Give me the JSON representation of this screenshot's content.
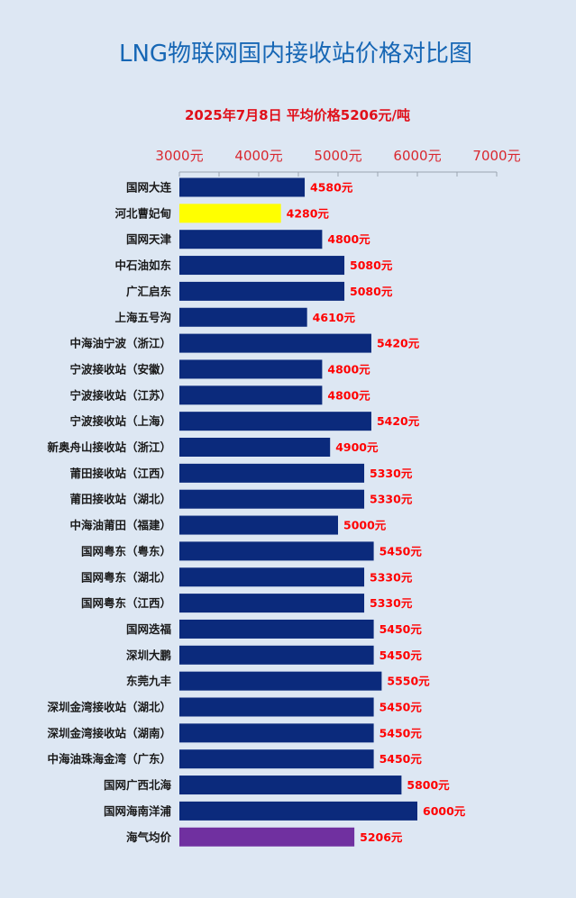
{
  "chart_data": {
    "type": "bar",
    "orientation": "horizontal",
    "title": "LNG物联网国内接收站价格对比图",
    "subtitle": "2025年7月8日 平均价格5206元/吨",
    "x_ticks": [
      "3000元",
      "4000元",
      "5000元",
      "6000元",
      "7000元"
    ],
    "xlim": [
      3000,
      7000
    ],
    "value_suffix": "元",
    "axis_position": "top",
    "categories": [
      "国网大连",
      "河北曹妃甸",
      "国网天津",
      "中石油如东",
      "广汇启东",
      "上海五号沟",
      "中海油宁波（浙江）",
      "宁波接收站（安徽）",
      "宁波接收站（江苏）",
      "宁波接收站（上海）",
      "新奥舟山接收站（浙江）",
      "莆田接收站（江西）",
      "莆田接收站（湖北）",
      "中海油莆田（福建）",
      "国网粤东（粤东）",
      "国网粤东（湖北）",
      "国网粤东（江西）",
      "国网迭福",
      "深圳大鹏",
      "东莞九丰",
      "深圳金湾接收站（湖北）",
      "深圳金湾接收站（湖南）",
      "中海油珠海金湾（广东）",
      "国网广西北海",
      "国网海南洋浦",
      "海气均价"
    ],
    "values": [
      4580,
      4280,
      4800,
      5080,
      5080,
      4610,
      5420,
      4800,
      4800,
      5420,
      4900,
      5330,
      5330,
      5000,
      5450,
      5330,
      5330,
      5450,
      5450,
      5550,
      5450,
      5450,
      5450,
      5800,
      6000,
      5206
    ],
    "colors": {
      "default": "#0b2a7c",
      "highlight": "#ffff00",
      "average": "#7030a0"
    },
    "bar_color_index": {
      "highlight": 1,
      "average": 25
    }
  }
}
